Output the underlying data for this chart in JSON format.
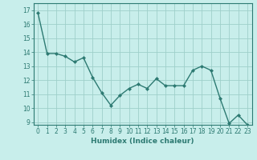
{
  "x": [
    0,
    1,
    2,
    3,
    4,
    5,
    6,
    7,
    8,
    9,
    10,
    11,
    12,
    13,
    14,
    15,
    16,
    17,
    18,
    19,
    20,
    21,
    22,
    23
  ],
  "y": [
    16.8,
    13.9,
    13.9,
    13.7,
    13.3,
    13.6,
    12.2,
    11.1,
    10.2,
    10.9,
    11.4,
    11.7,
    11.4,
    12.1,
    11.6,
    11.6,
    11.6,
    12.7,
    13.0,
    12.7,
    10.7,
    8.9,
    9.5,
    8.8
  ],
  "line_color": "#2d7a72",
  "marker": "D",
  "marker_size": 2.0,
  "bg_color": "#c8eeeb",
  "grid_color": "#9fcfca",
  "xlabel": "Humidex (Indice chaleur)",
  "xlim": [
    -0.5,
    23.5
  ],
  "ylim": [
    8.8,
    17.5
  ],
  "yticks": [
    9,
    10,
    11,
    12,
    13,
    14,
    15,
    16,
    17
  ],
  "xticks": [
    0,
    1,
    2,
    3,
    4,
    5,
    6,
    7,
    8,
    9,
    10,
    11,
    12,
    13,
    14,
    15,
    16,
    17,
    18,
    19,
    20,
    21,
    22,
    23
  ],
  "tick_fontsize": 5.5,
  "xlabel_fontsize": 6.5,
  "linewidth": 1.0
}
